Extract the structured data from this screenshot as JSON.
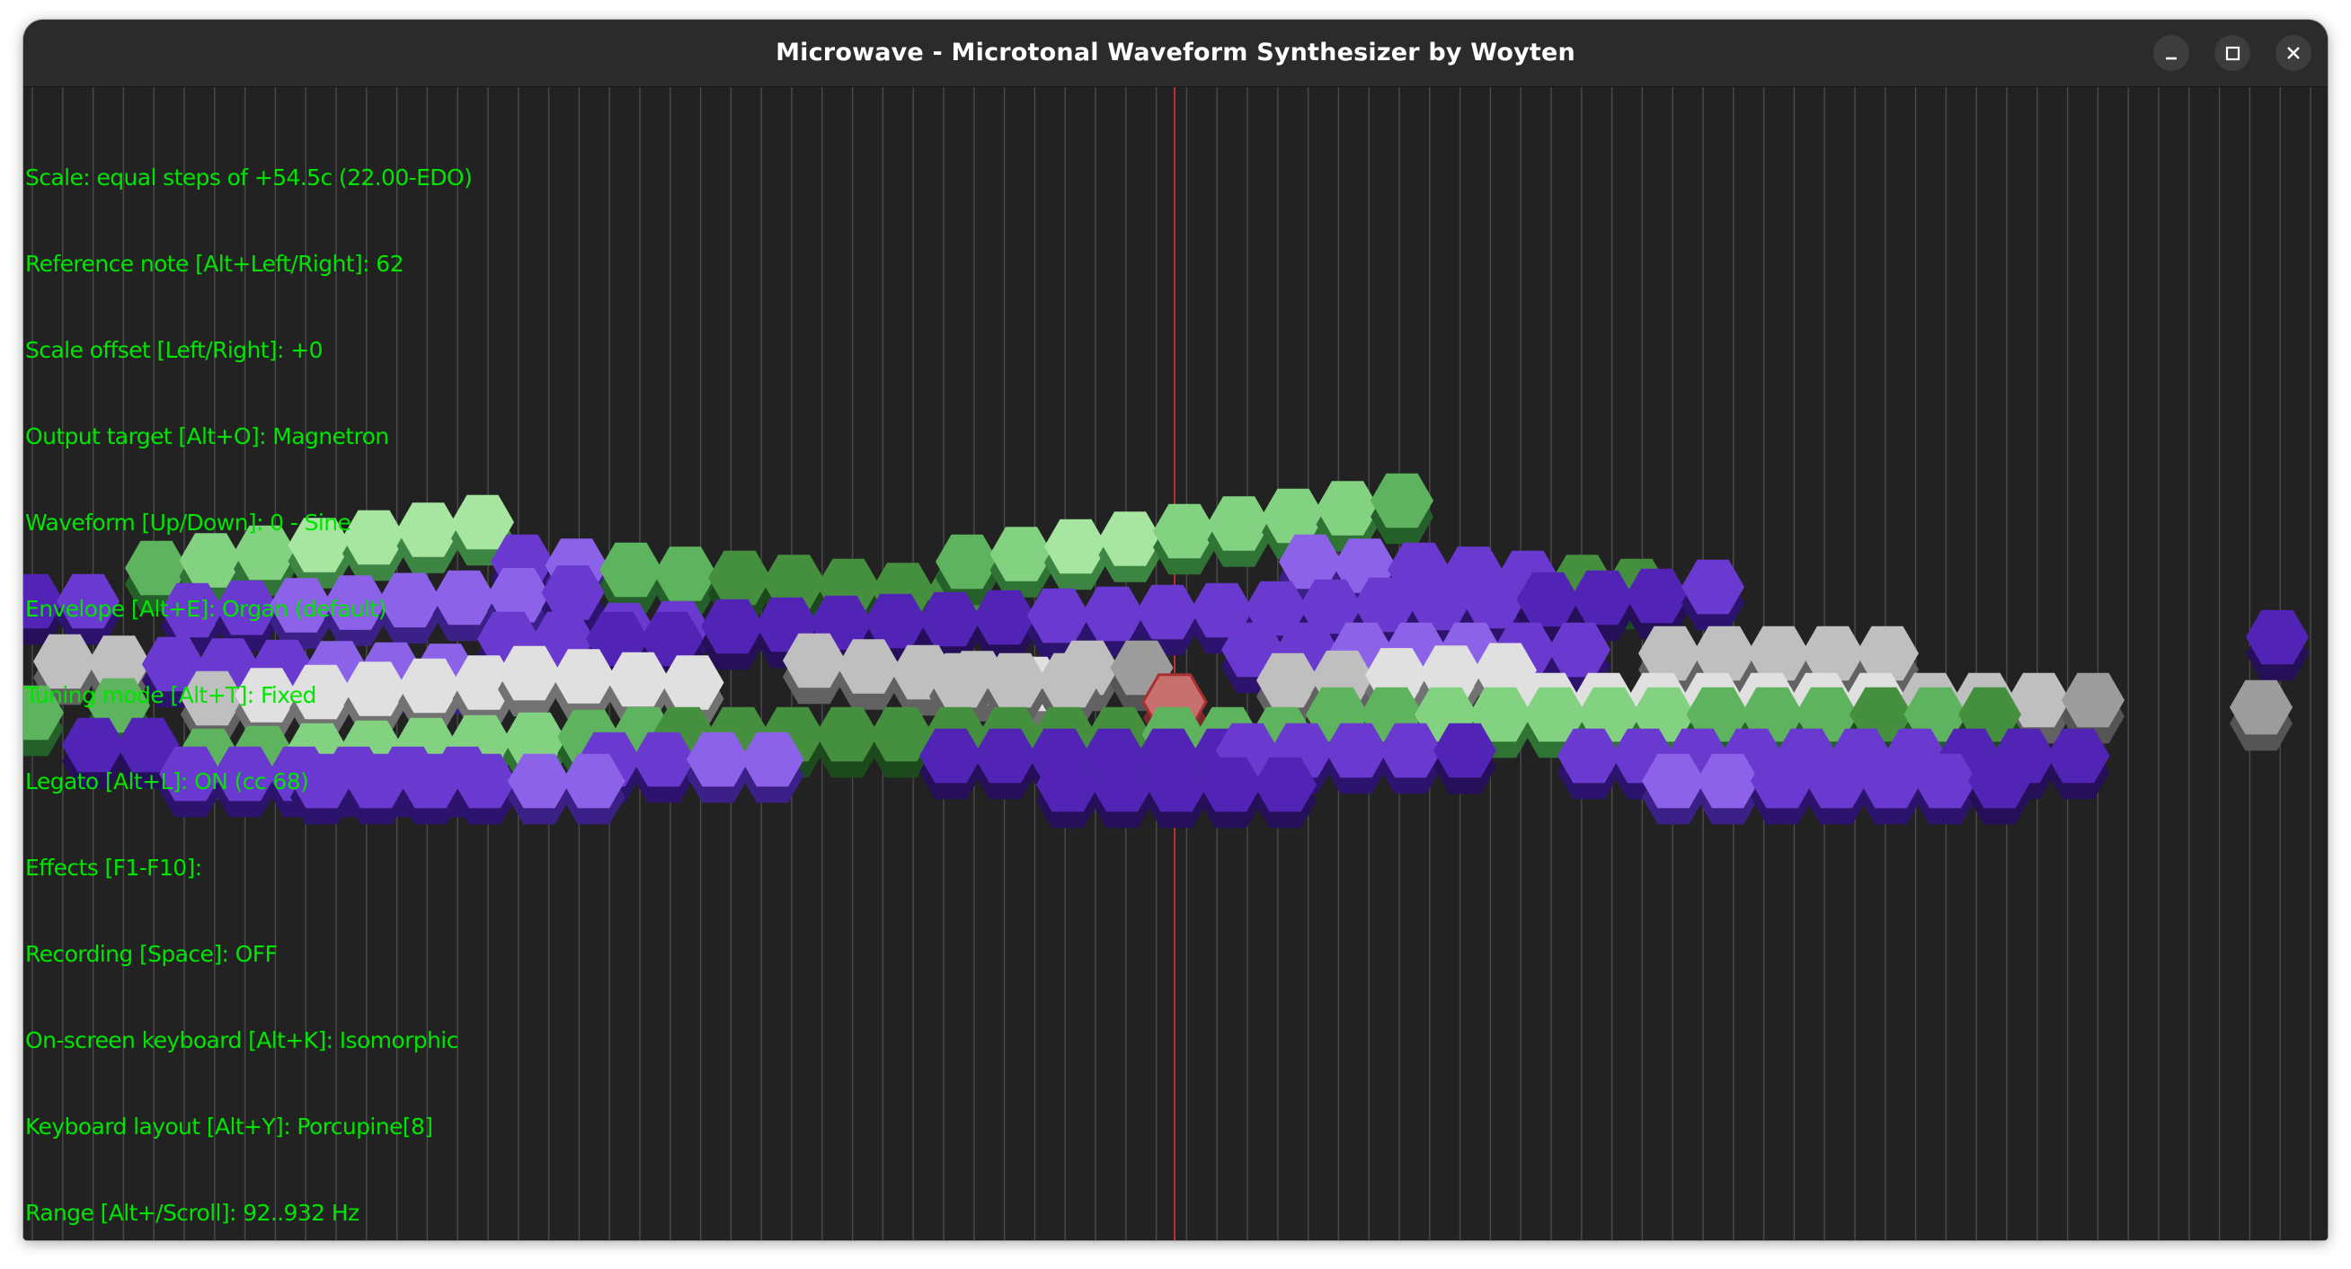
{
  "window": {
    "title": "Microwave - Microtonal Waveform Synthesizer by Woyten",
    "controls": [
      "minimize",
      "maximize",
      "close"
    ]
  },
  "info_lines": [
    "Scale: equal steps of +54.5c (22.00-EDO)",
    "Reference note [Alt+Left/Right]: 62",
    "Scale offset [Left/Right]: +0",
    "Output target [Alt+O]: Magnetron",
    "Waveform [Up/Down]: 0 - Sine",
    "Envelope [Alt+E]: Organ (default)",
    "Tuning mode [Alt+T]: Fixed",
    "Legato [Alt+L]: ON (cc 68)",
    "Effects [F1-F10]:",
    "Recording [Space]: OFF",
    "On-screen keyboard [Alt+K]: Isomorphic",
    "Keyboard layout [Alt+Y]: Porcupine[8]",
    "Range [Alt+/Scroll]: 92..932 Hz"
  ],
  "colors": {
    "info_text": "#00e400",
    "background": "#222222",
    "grid_line": "#4a4a4a",
    "reference_line": "#b83030",
    "key_green": "#5ec65e",
    "key_purple": "#6a3ad0",
    "key_white": "#d2d2d2",
    "key_active": "#c87070"
  },
  "icons": {
    "minimize": "minimize-icon",
    "maximize": "maximize-icon",
    "close": "close-icon"
  }
}
